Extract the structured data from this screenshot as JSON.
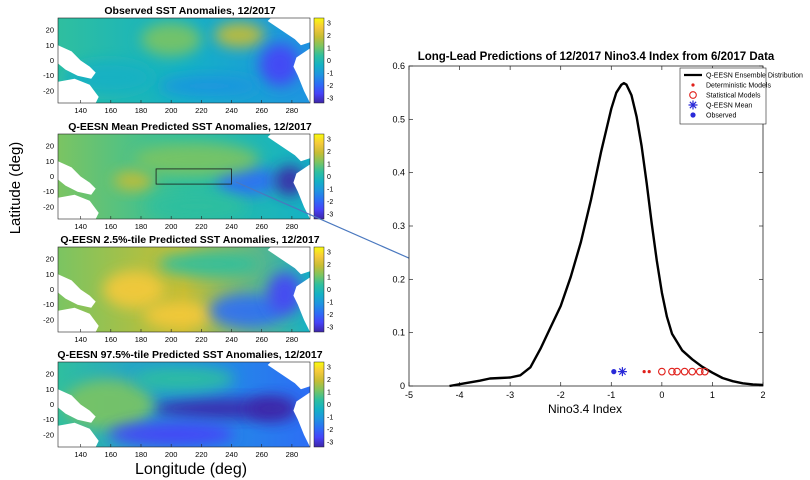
{
  "figure": {
    "ylabel": "Latitude (deg)",
    "xlabel": "Longitude (deg)"
  },
  "maps": [
    {
      "title": "Observed SST Anomalies, 12/2017",
      "pattern": "observed",
      "has_box": false
    },
    {
      "title": "Q-EESN Mean Predicted SST Anomalies, 12/2017",
      "pattern": "mean",
      "has_box": true
    },
    {
      "title": "Q-EESN 2.5%-tile Predicted SST Anomalies, 12/2017",
      "pattern": "low",
      "has_box": false
    },
    {
      "title": "Q-EESN 97.5%-tile Predicted SST Anomalies, 12/2017",
      "pattern": "high",
      "has_box": false
    }
  ],
  "map_axes": {
    "x_ticks": [
      "140",
      "160",
      "180",
      "200",
      "220",
      "240",
      "260",
      "280"
    ],
    "y_ticks": [
      "20",
      "10",
      "0",
      "-10",
      "-20"
    ],
    "colorbar_ticks": [
      "3",
      "2",
      "1",
      "0",
      "-1",
      "-2",
      "-3"
    ],
    "colormap": [
      "#3e26a8",
      "#4743f8",
      "#2d6ef5",
      "#1f94e0",
      "#14b1c5",
      "#2fbf9f",
      "#7bc462",
      "#c6bd34",
      "#f6c93b",
      "#f9fb0e"
    ]
  },
  "chart_data": {
    "type": "line",
    "title": "Long-Lead Predictions of 12/2017 Nino3.4 Index from 6/2017 Data",
    "xlabel": "Nino3.4 Index",
    "ylabel": "",
    "xlim": [
      -5,
      2
    ],
    "ylim": [
      0,
      0.6
    ],
    "x_ticks": [
      "-5",
      "-4",
      "-3",
      "-2",
      "-1",
      "0",
      "1",
      "2"
    ],
    "y_ticks": [
      "0",
      "0.1",
      "0.2",
      "0.3",
      "0.4",
      "0.5",
      "0.6"
    ],
    "legend_position": "top-right",
    "series": [
      {
        "name": "Q-EESN Ensemble Distribution",
        "kind": "line",
        "color": "#000000",
        "x": [
          -4.2,
          -3.9,
          -3.6,
          -3.4,
          -3.2,
          -3.0,
          -2.8,
          -2.6,
          -2.4,
          -2.2,
          -2.0,
          -1.8,
          -1.6,
          -1.4,
          -1.2,
          -1.0,
          -0.9,
          -0.8,
          -0.75,
          -0.7,
          -0.6,
          -0.5,
          -0.4,
          -0.3,
          -0.2,
          -0.1,
          0.0,
          0.1,
          0.2,
          0.4,
          0.6,
          0.8,
          1.0,
          1.2,
          1.4,
          1.6,
          1.8,
          2.0
        ],
        "y": [
          0.0,
          0.005,
          0.01,
          0.014,
          0.015,
          0.016,
          0.02,
          0.035,
          0.07,
          0.11,
          0.15,
          0.205,
          0.27,
          0.35,
          0.44,
          0.52,
          0.55,
          0.565,
          0.568,
          0.565,
          0.545,
          0.505,
          0.45,
          0.38,
          0.305,
          0.235,
          0.175,
          0.13,
          0.098,
          0.067,
          0.05,
          0.036,
          0.025,
          0.015,
          0.009,
          0.005,
          0.003,
          0.002
        ]
      },
      {
        "name": "Deterministic Models",
        "kind": "dot",
        "color": "#e0201b",
        "x": [
          -0.35,
          -0.25
        ],
        "y": [
          0.027,
          0.027
        ]
      },
      {
        "name": "Statistical Models",
        "kind": "circle",
        "color": "#e0201b",
        "x": [
          0.0,
          0.2,
          0.3,
          0.45,
          0.6,
          0.75,
          0.85
        ],
        "y": [
          0.027,
          0.027,
          0.027,
          0.027,
          0.027,
          0.027,
          0.027
        ]
      },
      {
        "name": "Q-EESN Mean",
        "kind": "star",
        "color": "#2a2ad8",
        "x": [
          -0.78
        ],
        "y": [
          0.027
        ]
      },
      {
        "name": "Observed",
        "kind": "point",
        "color": "#2a2ad8",
        "x": [
          -0.95
        ],
        "y": [
          0.027
        ]
      }
    ]
  }
}
